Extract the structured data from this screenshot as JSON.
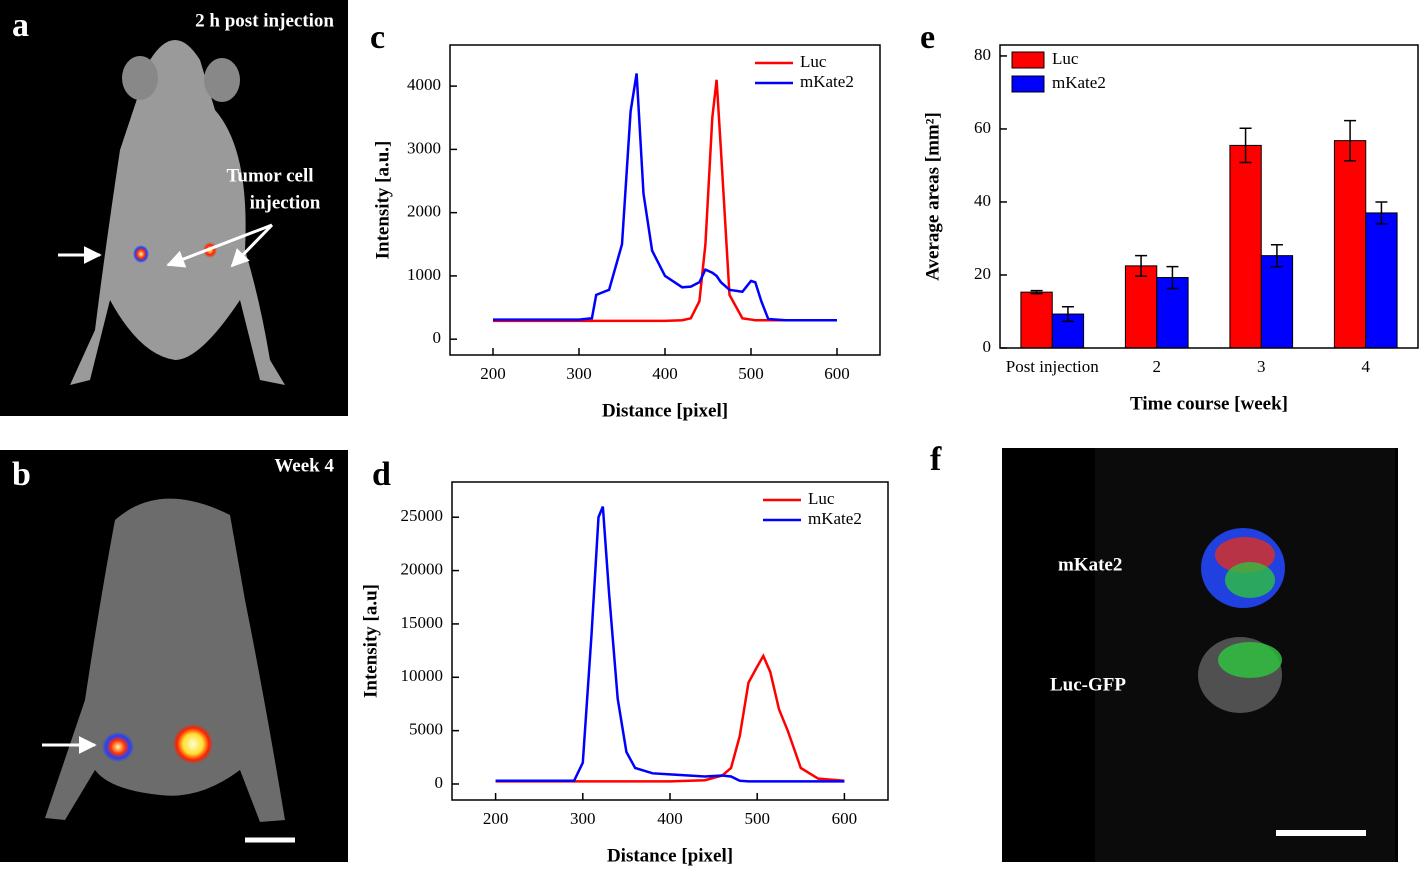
{
  "chart_data": [
    {
      "type": "line",
      "label": "c",
      "xlabel": "Distance [pixel]",
      "ylabel": "Intensity [a.u.]",
      "xlim": [
        150,
        650
      ],
      "ylim": [
        -250,
        4650
      ],
      "xticks": [
        200,
        300,
        400,
        500,
        600
      ],
      "yticks": [
        0,
        1000,
        2000,
        3000,
        4000
      ],
      "legend": "upper right",
      "series": [
        {
          "name": "Luc",
          "color": "#ff0000",
          "x": [
            200,
            300,
            315,
            320,
            335,
            350,
            360,
            367,
            375,
            385,
            400,
            420,
            430,
            440,
            447,
            455,
            460,
            465,
            475,
            490,
            500,
            505,
            512,
            520,
            540,
            600
          ],
          "values": [
            290,
            290,
            290,
            290,
            290,
            290,
            290,
            290,
            290,
            290,
            290,
            300,
            330,
            600,
            1500,
            3500,
            4100,
            3000,
            700,
            330,
            310,
            300,
            300,
            300,
            300,
            300
          ]
        },
        {
          "name": "mKate2",
          "color": "#0000ff",
          "x": [
            200,
            300,
            315,
            320,
            335,
            350,
            360,
            367,
            375,
            385,
            400,
            420,
            430,
            440,
            447,
            455,
            460,
            465,
            475,
            490,
            500,
            505,
            512,
            520,
            540,
            600
          ],
          "values": [
            310,
            310,
            330,
            700,
            780,
            1500,
            3600,
            4200,
            2300,
            1400,
            1000,
            820,
            830,
            900,
            1100,
            1050,
            1000,
            900,
            780,
            750,
            920,
            900,
            600,
            320,
            300,
            300
          ]
        }
      ]
    },
    {
      "type": "line",
      "label": "d",
      "xlabel": "Distance [pixel]",
      "ylabel": "Intensity [a.u]",
      "xlim": [
        150,
        650
      ],
      "ylim": [
        -1500,
        28300
      ],
      "xticks": [
        200,
        300,
        400,
        500,
        600
      ],
      "yticks": [
        0,
        5000,
        10000,
        15000,
        20000,
        25000
      ],
      "legend": "upper right",
      "series": [
        {
          "name": "Luc",
          "color": "#ff0000",
          "x": [
            200,
            290,
            300,
            310,
            318,
            323,
            330,
            340,
            350,
            360,
            380,
            400,
            440,
            460,
            470,
            480,
            490,
            500,
            507,
            515,
            525,
            535,
            550,
            570,
            600
          ],
          "values": [
            250,
            250,
            250,
            250,
            250,
            250,
            250,
            250,
            250,
            250,
            250,
            250,
            350,
            800,
            1500,
            4500,
            9500,
            11000,
            12000,
            10500,
            7000,
            5000,
            1500,
            500,
            300
          ]
        },
        {
          "name": "mKate2",
          "color": "#0000ff",
          "x": [
            200,
            290,
            300,
            310,
            318,
            323,
            330,
            340,
            350,
            360,
            380,
            400,
            440,
            460,
            470,
            480,
            490,
            500,
            507,
            515,
            525,
            535,
            550,
            570,
            600
          ],
          "values": [
            300,
            300,
            2000,
            14000,
            25000,
            26000,
            18000,
            8000,
            3000,
            1500,
            1000,
            900,
            700,
            800,
            700,
            300,
            250,
            250,
            250,
            250,
            250,
            250,
            250,
            250,
            250
          ]
        }
      ]
    },
    {
      "type": "bar",
      "label": "e",
      "xlabel": "Time course [week]",
      "ylabel": "Average areas [mm²]",
      "categories": [
        "Post injection",
        "2",
        "3",
        "4"
      ],
      "ylim": [
        0,
        83
      ],
      "yticks": [
        0,
        20,
        40,
        60,
        80
      ],
      "legend": "upper left",
      "series": [
        {
          "name": "Luc",
          "color": "#ff0000",
          "values": [
            15.3,
            22.5,
            55.5,
            56.8
          ],
          "errors": [
            0.4,
            2.8,
            4.7,
            5.5
          ]
        },
        {
          "name": "mKate2",
          "color": "#0000ff",
          "values": [
            9.3,
            19.3,
            25.3,
            37
          ],
          "errors": [
            2,
            3,
            3,
            3
          ]
        }
      ]
    }
  ],
  "images": [
    {
      "label": "a",
      "caption": "2 h post injection",
      "annotation": [
        "Tumor cell",
        "injection"
      ]
    },
    {
      "label": "b",
      "caption": "Week 4"
    },
    {
      "label": "f",
      "labels": [
        "mKate2",
        "Luc-GFP"
      ]
    }
  ]
}
